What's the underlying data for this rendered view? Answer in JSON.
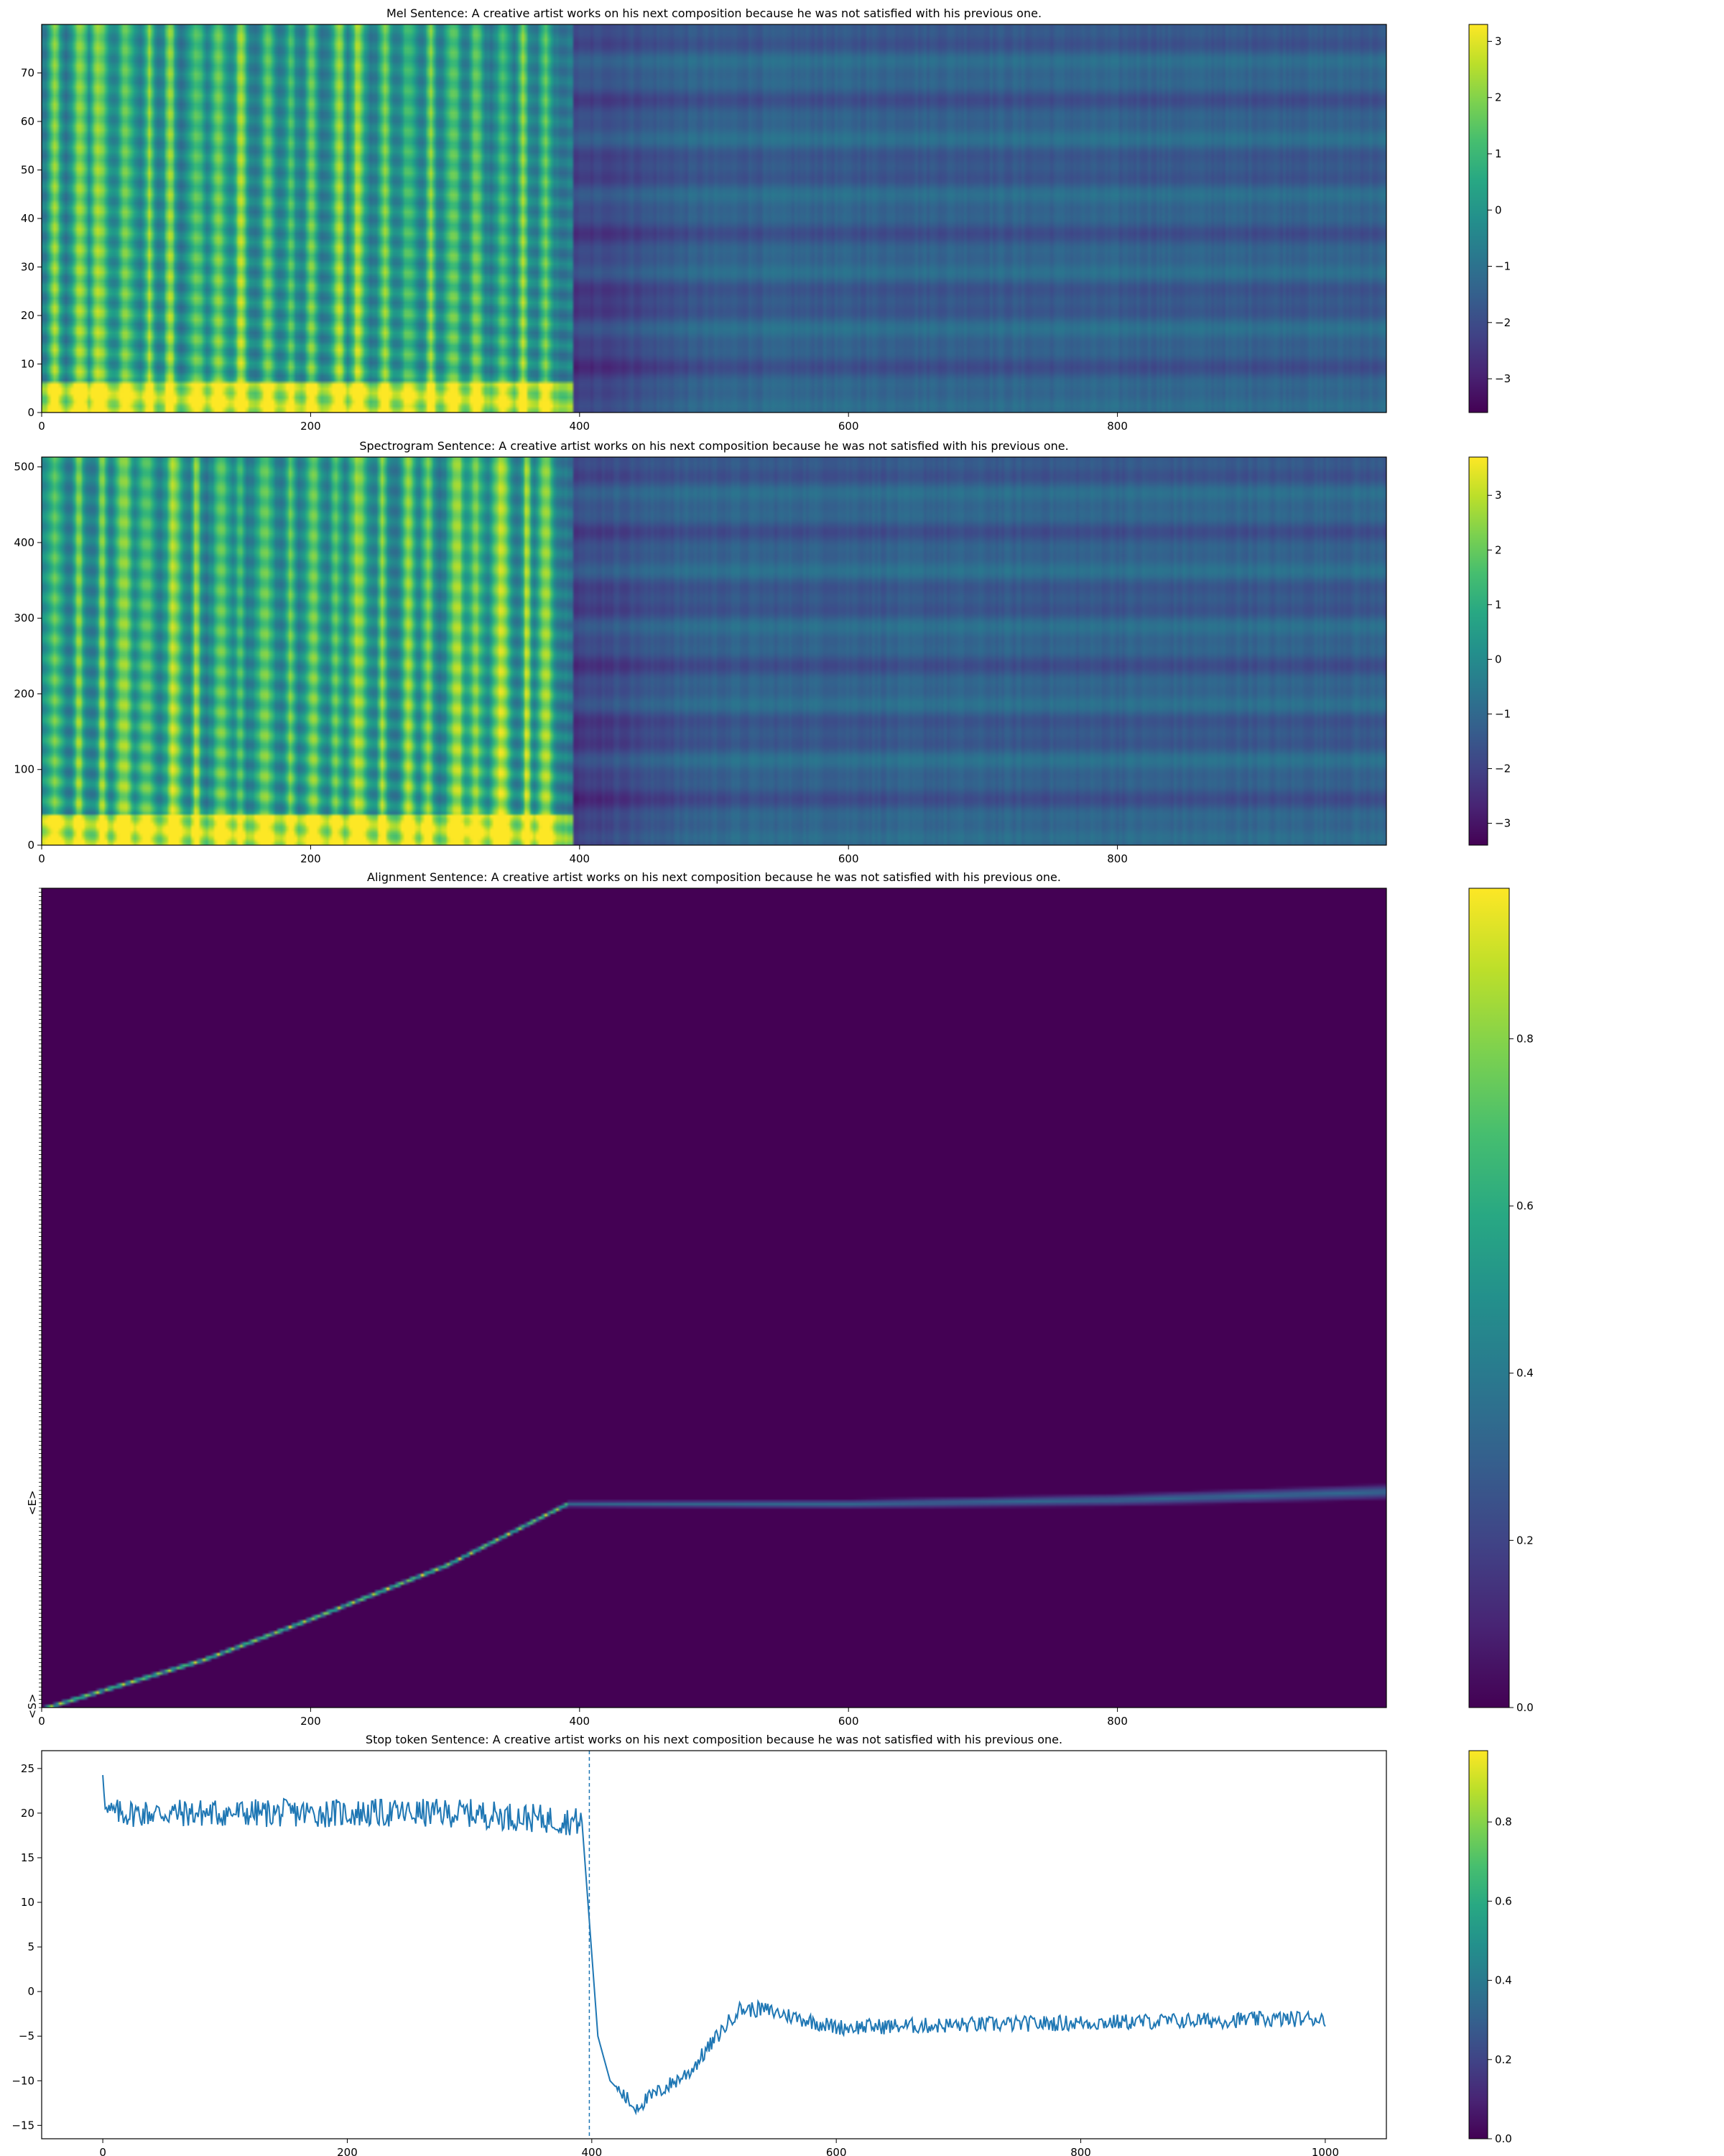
{
  "chart_data": [
    {
      "type": "heatmap",
      "name": "mel",
      "title": "Mel    Sentence: A creative artist works on his next composition because he was not satisfied with his previous one.",
      "xlim": [
        0,
        1000
      ],
      "ylim": [
        0,
        80
      ],
      "xticks": [
        "0",
        "200",
        "400",
        "600",
        "800"
      ],
      "yticks": [
        "0",
        "10",
        "20",
        "30",
        "40",
        "50",
        "60",
        "70"
      ],
      "colorbar": {
        "min": -3.6,
        "max": 3.3,
        "ticks": [
          "3",
          "2",
          "1",
          "0",
          "−1",
          "−2",
          "−3"
        ]
      },
      "speech_end": 395
    },
    {
      "type": "heatmap",
      "name": "spectrogram",
      "title": "Spectrogram    Sentence: A creative artist works on his next composition because he was not satisfied with his previous one.",
      "xlim": [
        0,
        1000
      ],
      "ylim": [
        0,
        513
      ],
      "xticks": [
        "0",
        "200",
        "400",
        "600",
        "800"
      ],
      "yticks": [
        "0",
        "100",
        "200",
        "300",
        "400",
        "500"
      ],
      "colorbar": {
        "min": -3.4,
        "max": 3.7,
        "ticks": [
          "3",
          "2",
          "1",
          "0",
          "−1",
          "−2",
          "−3"
        ]
      },
      "speech_end": 395
    },
    {
      "type": "heatmap",
      "name": "alignment",
      "title": "Alignment    Sentence: A creative artist works on his next composition because he was not satisfied with his previous one.",
      "xlim": [
        0,
        1000
      ],
      "xticks": [
        "0",
        "200",
        "400",
        "600",
        "800"
      ],
      "ytick_labels_visible": [
        "<S>",
        "<E>"
      ],
      "colorbar": {
        "min": 0,
        "max": 0.98,
        "ticks": [
          "0.0",
          "0.2",
          "0.4",
          "0.6",
          "0.8"
        ]
      },
      "alignment_path": [
        [
          0,
          0
        ],
        [
          120,
          12
        ],
        [
          200,
          22
        ],
        [
          300,
          35
        ],
        [
          390,
          50
        ],
        [
          600,
          50
        ],
        [
          800,
          51
        ],
        [
          1000,
          53
        ]
      ],
      "token_count": 200
    },
    {
      "type": "line",
      "name": "stop-token",
      "title": "Stop token    Sentence: A creative artist works on his next composition because he was not satisfied with his previous one.",
      "xlim": [
        -50,
        1050
      ],
      "ylim": [
        -16.5,
        27
      ],
      "xticks": [
        "0",
        "200",
        "400",
        "600",
        "800",
        "1000"
      ],
      "yticks": [
        "25",
        "20",
        "15",
        "10",
        "5",
        "0",
        "−5",
        "−10",
        "−15"
      ],
      "colorbar": {
        "min": 0,
        "max": 0.98,
        "ticks": [
          "0.0",
          "0.2",
          "0.4",
          "0.6",
          "0.8"
        ]
      },
      "vline_x": 398,
      "series_color": "#1f77b4",
      "x_range": [
        0,
        1000
      ],
      "curve_keypoints": [
        [
          0,
          25
        ],
        [
          3,
          20
        ],
        [
          100,
          20
        ],
        [
          300,
          20
        ],
        [
          392,
          19
        ],
        [
          405,
          -5
        ],
        [
          415,
          -10
        ],
        [
          435,
          -13
        ],
        [
          480,
          -9
        ],
        [
          520,
          -2
        ],
        [
          540,
          -2
        ],
        [
          600,
          -4
        ],
        [
          800,
          -3.5
        ],
        [
          1000,
          -3
        ]
      ]
    }
  ]
}
